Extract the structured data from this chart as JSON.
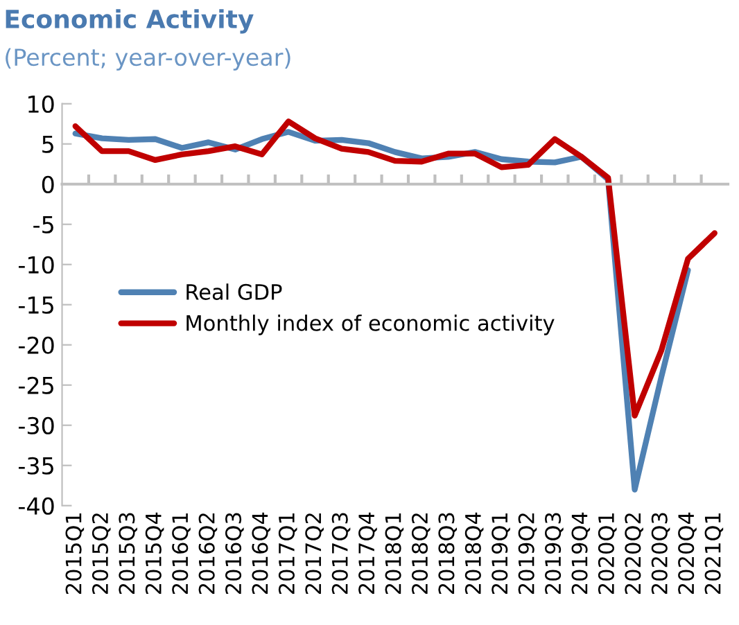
{
  "chart_data": {
    "type": "line",
    "title": "Economic Activity",
    "subtitle": "(Percent; year-over-year)",
    "categories": [
      "2015Q1",
      "2015Q2",
      "2015Q3",
      "2015Q4",
      "2016Q1",
      "2016Q2",
      "2016Q3",
      "2016Q4",
      "2017Q1",
      "2017Q2",
      "2017Q3",
      "2017Q4",
      "2018Q1",
      "2018Q2",
      "2018Q3",
      "2018Q4",
      "2019Q1",
      "2019Q2",
      "2019Q3",
      "2019Q4",
      "2020Q1",
      "2020Q2",
      "2020Q3",
      "2020Q4",
      "2021Q1"
    ],
    "series": [
      {
        "name": "Real GDP",
        "color": "#4f81b3",
        "values": [
          6.3,
          5.7,
          5.5,
          5.6,
          4.5,
          5.2,
          4.3,
          5.6,
          6.5,
          5.4,
          5.5,
          5.1,
          4.0,
          3.2,
          3.4,
          4.0,
          3.1,
          2.8,
          2.7,
          3.4,
          0.6,
          -38.0,
          -24.0,
          -10.7,
          null
        ]
      },
      {
        "name": "Monthly index of economic activity",
        "color": "#c00000",
        "values": [
          7.2,
          4.1,
          4.1,
          3.0,
          3.7,
          4.1,
          4.7,
          3.7,
          7.8,
          5.7,
          4.4,
          4.0,
          2.9,
          2.8,
          3.8,
          3.8,
          2.1,
          2.4,
          5.6,
          3.4,
          0.8,
          -28.8,
          -20.7,
          -9.3,
          -6.1
        ]
      }
    ],
    "ylim": [
      -40,
      10
    ],
    "yticks": [
      10,
      5,
      0,
      -5,
      -10,
      -15,
      -20,
      -25,
      -30,
      -35,
      -40
    ],
    "legend": "left",
    "marker": "none",
    "line_style": "solid"
  }
}
